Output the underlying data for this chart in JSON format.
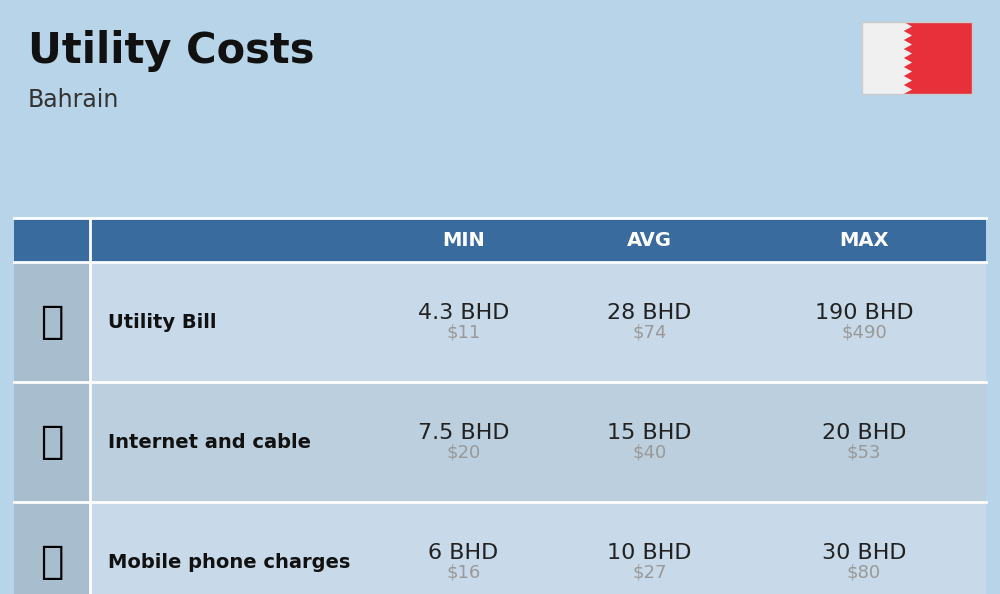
{
  "title": "Utility Costs",
  "subtitle": "Bahrain",
  "background_color": "#b8d4e8",
  "header_bg_color": "#3a6b9e",
  "header_text_color": "#ffffff",
  "row_color_1": "#c8daea",
  "row_color_2": "#bccfde",
  "icon_col_color": "#a8bece",
  "flag_white_color": "#f0f0f0",
  "flag_red_color": "#e8303a",
  "title_fontsize": 30,
  "subtitle_fontsize": 17,
  "header_fontsize": 14,
  "label_fontsize": 14,
  "value_fontsize": 16,
  "usd_fontsize": 13,
  "usd_color": "#999999",
  "cell_value_color": "#222222",
  "rows": [
    {
      "label": "Utility Bill",
      "min_bhd": "4.3 BHD",
      "min_usd": "$11",
      "avg_bhd": "28 BHD",
      "avg_usd": "$74",
      "max_bhd": "190 BHD",
      "max_usd": "$490"
    },
    {
      "label": "Internet and cable",
      "min_bhd": "7.5 BHD",
      "min_usd": "$20",
      "avg_bhd": "15 BHD",
      "avg_usd": "$40",
      "max_bhd": "20 BHD",
      "max_usd": "$53"
    },
    {
      "label": "Mobile phone charges",
      "min_bhd": "6 BHD",
      "min_usd": "$16",
      "avg_bhd": "10 BHD",
      "avg_usd": "$27",
      "max_bhd": "30 BHD",
      "max_usd": "$80"
    }
  ]
}
